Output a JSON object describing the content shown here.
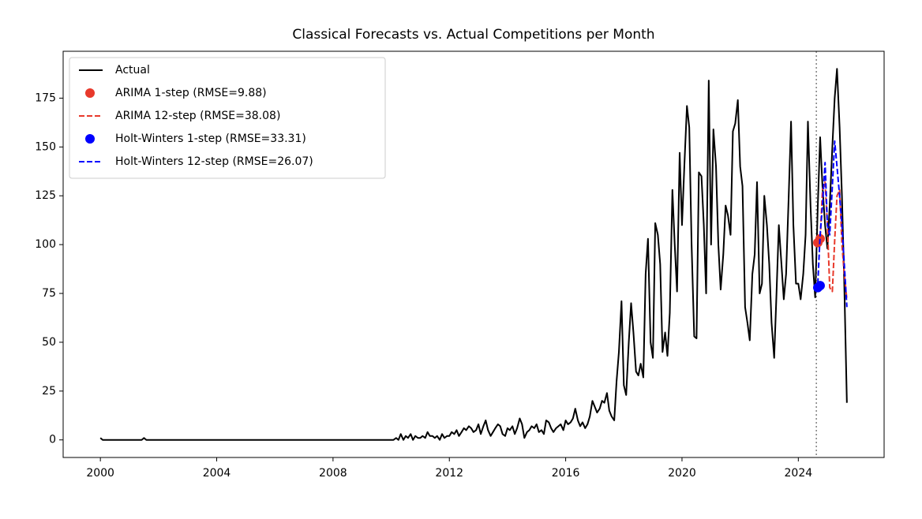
{
  "chart_data": {
    "type": "line",
    "title": "Classical Forecasts vs. Actual Competitions per Month",
    "xlim": [
      1998.72,
      2026.95
    ],
    "ylim": [
      -9,
      199
    ],
    "xticks": [
      2000,
      2004,
      2008,
      2012,
      2016,
      2020,
      2024
    ],
    "yticks": [
      0,
      25,
      50,
      75,
      100,
      125,
      150,
      175
    ],
    "grid": false,
    "legend": "upper left",
    "vline_x": 2024.62,
    "series": [
      {
        "name": "Actual",
        "color": "#000000",
        "style": "solid",
        "x": [
          2000,
          2000.08,
          2001.42,
          2001.5,
          2001.58,
          2010,
          2010.08,
          2010.17,
          2010.25,
          2010.33,
          2010.42,
          2010.5,
          2010.58,
          2010.67,
          2010.75,
          2010.83,
          2010.92,
          2011,
          2011.08,
          2011.17,
          2011.25,
          2011.33,
          2011.42,
          2011.5,
          2011.58,
          2011.67,
          2011.75,
          2011.83,
          2011.92,
          2012,
          2012.08,
          2012.17,
          2012.25,
          2012.33,
          2012.42,
          2012.5,
          2012.58,
          2012.67,
          2012.75,
          2012.83,
          2012.92,
          2013,
          2013.08,
          2013.17,
          2013.25,
          2013.33,
          2013.42,
          2013.5,
          2013.58,
          2013.67,
          2013.75,
          2013.83,
          2013.92,
          2014,
          2014.08,
          2014.17,
          2014.25,
          2014.33,
          2014.42,
          2014.5,
          2014.58,
          2014.67,
          2014.75,
          2014.83,
          2014.92,
          2015,
          2015.08,
          2015.17,
          2015.25,
          2015.33,
          2015.42,
          2015.5,
          2015.58,
          2015.67,
          2015.75,
          2015.83,
          2015.92,
          2016,
          2016.08,
          2016.17,
          2016.25,
          2016.33,
          2016.42,
          2016.5,
          2016.58,
          2016.67,
          2016.75,
          2016.83,
          2016.92,
          2017,
          2017.08,
          2017.17,
          2017.25,
          2017.33,
          2017.42,
          2017.5,
          2017.58,
          2017.67,
          2017.75,
          2017.83,
          2017.92,
          2018,
          2018.08,
          2018.17,
          2018.25,
          2018.33,
          2018.42,
          2018.5,
          2018.58,
          2018.67,
          2018.75,
          2018.83,
          2018.92,
          2019,
          2019.08,
          2019.17,
          2019.25,
          2019.33,
          2019.42,
          2019.5,
          2019.58,
          2019.67,
          2019.75,
          2019.83,
          2019.92,
          2020,
          2020.08,
          2020.17,
          2020.25,
          2020.33,
          2020.42,
          2020.5,
          2020.58,
          2020.67,
          2020.75,
          2020.83,
          2020.92,
          2021,
          2021.08,
          2021.17,
          2021.25,
          2021.33,
          2021.42,
          2021.5,
          2021.58,
          2021.67,
          2021.75,
          2021.83,
          2021.92,
          2022,
          2022.08,
          2022.17,
          2022.25,
          2022.33,
          2022.42,
          2022.5,
          2022.58,
          2022.67,
          2022.75,
          2022.83,
          2022.92,
          2023,
          2023.08,
          2023.17,
          2023.25,
          2023.33,
          2023.42,
          2023.5,
          2023.58,
          2023.67,
          2023.75,
          2023.83,
          2023.92,
          2024,
          2024.08,
          2024.17,
          2024.25,
          2024.33,
          2024.42,
          2024.5,
          2024.58,
          2024.67,
          2024.75,
          2024.83,
          2024.92,
          2025,
          2025.08,
          2025.17,
          2025.25,
          2025.33,
          2025.42,
          2025.5,
          2025.58,
          2025.67
        ],
        "values": [
          1,
          0,
          0,
          1,
          0,
          0,
          0,
          1,
          0,
          3,
          0,
          2,
          1,
          3,
          0,
          2,
          1,
          1,
          2,
          1,
          4,
          2,
          2,
          1,
          2,
          0,
          3,
          1,
          2,
          2,
          4,
          3,
          5,
          2,
          4,
          6,
          5,
          7,
          6,
          4,
          5,
          8,
          3,
          7,
          10,
          5,
          2,
          4,
          6,
          8,
          7,
          3,
          2,
          6,
          5,
          7,
          3,
          6,
          11,
          8,
          1,
          4,
          5,
          7,
          6,
          8,
          4,
          5,
          3,
          10,
          9,
          6,
          4,
          6,
          7,
          8,
          5,
          10,
          8,
          9,
          11,
          16,
          10,
          7,
          9,
          6,
          8,
          12,
          20,
          17,
          14,
          16,
          20,
          19,
          24,
          15,
          12,
          10,
          30,
          45,
          71,
          28,
          23,
          50,
          70,
          55,
          35,
          33,
          39,
          32,
          85,
          103,
          50,
          42,
          111,
          105,
          90,
          45,
          55,
          43,
          65,
          128,
          100,
          76,
          147,
          110,
          140,
          171,
          160,
          100,
          53,
          52,
          137,
          135,
          110,
          75,
          184,
          100,
          159,
          140,
          100,
          77,
          95,
          120,
          115,
          105,
          158,
          162,
          174,
          140,
          130,
          68,
          60,
          51,
          85,
          95,
          132,
          75,
          80,
          125,
          110,
          90,
          60,
          42,
          75,
          110,
          90,
          72,
          85,
          125,
          163,
          110,
          80,
          80,
          72,
          85,
          105,
          163,
          120,
          90,
          73,
          120,
          155,
          130,
          110,
          98,
          120,
          150,
          175,
          190,
          160,
          125,
          80,
          19
        ]
      },
      {
        "name": "ARIMA 1-step (RMSE=9.88)",
        "color": "#e8392b",
        "style": "dot",
        "x": [
          2024.67,
          2024.75
        ],
        "values": [
          101,
          103
        ]
      },
      {
        "name": "ARIMA 12-step (RMSE=38.08)",
        "color": "#e8392b",
        "style": "dashed",
        "x": [
          2024.67,
          2024.75,
          2024.83,
          2024.92,
          2025,
          2025.08,
          2025.17,
          2025.25,
          2025.33,
          2025.42,
          2025.5,
          2025.58,
          2025.67
        ],
        "values": [
          100,
          102,
          128,
          132,
          110,
          78,
          76,
          102,
          125,
          128,
          100,
          85,
          72
        ]
      },
      {
        "name": "Holt-Winters 1-step (RMSE=33.31)",
        "color": "#0000ff",
        "style": "dot",
        "x": [
          2024.67,
          2024.75
        ],
        "values": [
          78,
          79
        ]
      },
      {
        "name": "Holt-Winters 12-step (RMSE=26.07)",
        "color": "#0000ff",
        "style": "dashed",
        "x": [
          2024.67,
          2024.75,
          2024.83,
          2024.92,
          2025,
          2025.08,
          2025.17,
          2025.25,
          2025.33,
          2025.42,
          2025.5,
          2025.58,
          2025.67
        ],
        "values": [
          80,
          105,
          120,
          142,
          110,
          105,
          130,
          153,
          140,
          125,
          110,
          90,
          68
        ]
      }
    ]
  }
}
